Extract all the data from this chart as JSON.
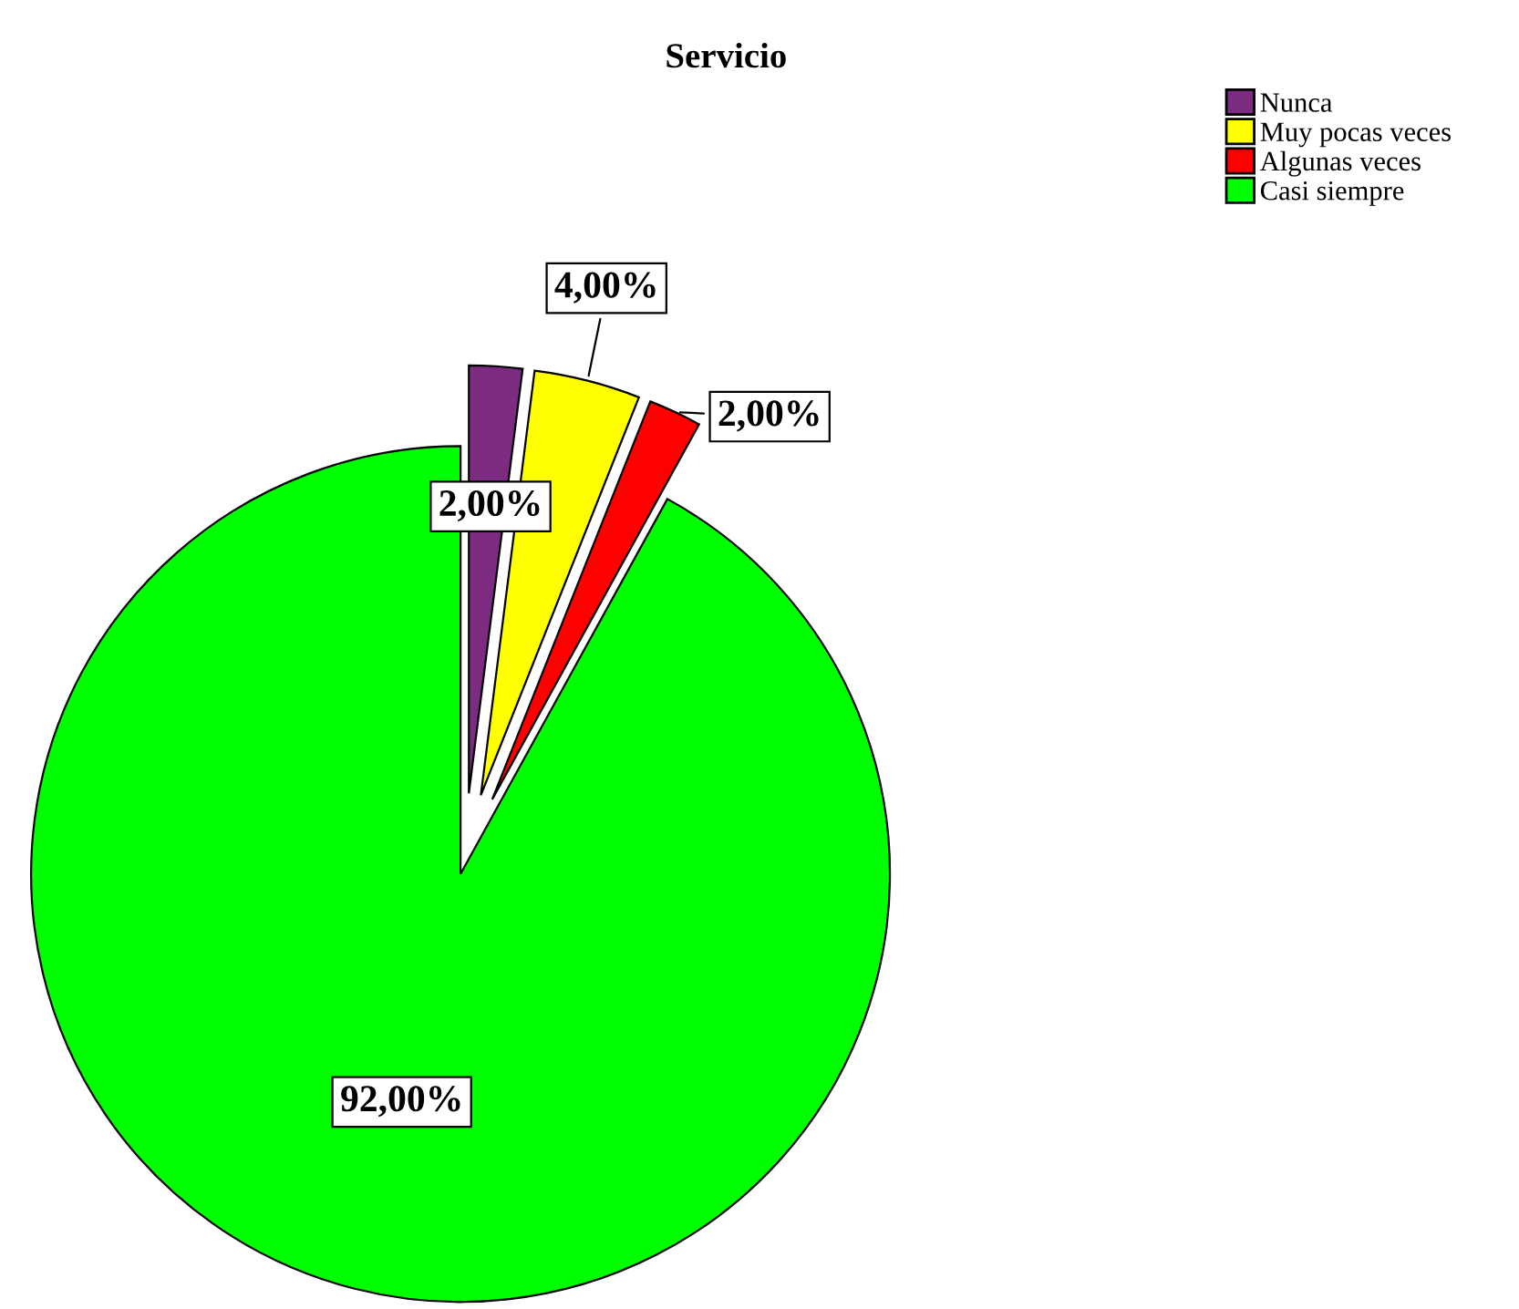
{
  "chart_data": {
    "type": "pie",
    "title": "Servicio",
    "categories": [
      "Nunca",
      "Muy pocas veces",
      "Algunas veces",
      "Casi siempre"
    ],
    "values": [
      2,
      4,
      2,
      92
    ],
    "colors": [
      "#7b2c80",
      "#ffff00",
      "#ff0000",
      "#00ff00"
    ],
    "value_labels": [
      "2,00%",
      "4,00%",
      "2,00%",
      "92,00%"
    ],
    "legend": "top right"
  }
}
